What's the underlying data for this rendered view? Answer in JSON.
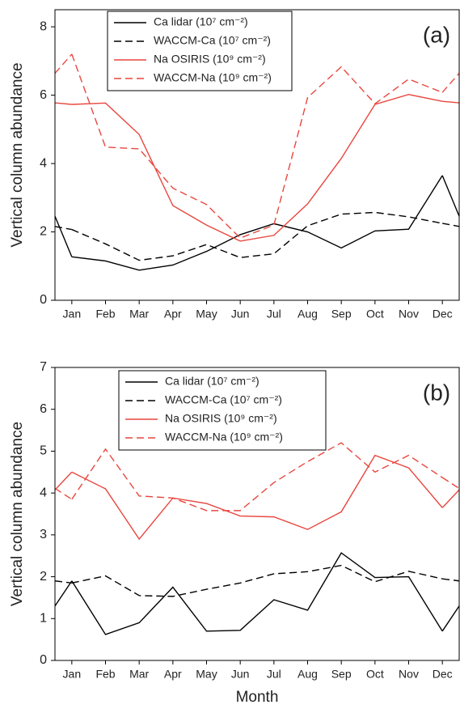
{
  "chart_data": [
    {
      "type": "line",
      "annotation": "(a)",
      "ylabel": "Vertical column abundance",
      "categories": [
        "Jan",
        "Feb",
        "Mar",
        "Apr",
        "May",
        "Jun",
        "Jul",
        "Aug",
        "Sep",
        "Oct",
        "Nov",
        "Dec"
      ],
      "ylim": [
        0,
        8.5
      ],
      "yticks": [
        0,
        2,
        4,
        6,
        8
      ],
      "series": [
        {
          "name": "Ca lidar (10⁷ cm⁻²)",
          "color": "#000000",
          "dash": false,
          "values": [
            1.27,
            1.15,
            0.88,
            1.03,
            1.43,
            1.92,
            2.24,
            2.0,
            1.53,
            2.03,
            2.08,
            3.65
          ]
        },
        {
          "name": "WACCM-Ca (10⁷ cm⁻²)",
          "color": "#000000",
          "dash": true,
          "values": [
            2.07,
            1.65,
            1.17,
            1.3,
            1.63,
            1.25,
            1.36,
            2.18,
            2.52,
            2.57,
            2.44,
            2.25
          ]
        },
        {
          "name": "Na OSIRIS (10⁹ cm⁻²)",
          "color": "#e8473f",
          "dash": false,
          "values": [
            5.73,
            5.77,
            4.85,
            2.77,
            2.2,
            1.73,
            1.9,
            2.82,
            4.15,
            5.73,
            6.02,
            5.82
          ]
        },
        {
          "name": "WACCM-Na (10⁹ cm⁻²)",
          "color": "#e8473f",
          "dash": true,
          "values": [
            7.2,
            4.48,
            4.43,
            3.28,
            2.8,
            1.82,
            2.2,
            5.93,
            6.83,
            5.75,
            6.47,
            6.08
          ]
        }
      ]
    },
    {
      "type": "line",
      "annotation": "(b)",
      "ylabel": "Vertical column abundance",
      "xlabel": "Month",
      "categories": [
        "Jan",
        "Feb",
        "Mar",
        "Apr",
        "May",
        "Jun",
        "Jul",
        "Aug",
        "Sep",
        "Oct",
        "Nov",
        "Dec"
      ],
      "ylim": [
        0,
        7
      ],
      "yticks": [
        0,
        1,
        2,
        3,
        4,
        5,
        6,
        7
      ],
      "series": [
        {
          "name": "Ca lidar (10⁷ cm⁻²)",
          "color": "#000000",
          "dash": false,
          "values": [
            1.9,
            0.62,
            0.9,
            1.75,
            0.7,
            0.72,
            1.45,
            1.2,
            2.57,
            1.98,
            2.0,
            0.7
          ]
        },
        {
          "name": "WACCM-Ca (10⁷ cm⁻²)",
          "color": "#000000",
          "dash": true,
          "values": [
            1.85,
            2.02,
            1.55,
            1.53,
            1.7,
            1.85,
            2.07,
            2.12,
            2.27,
            1.88,
            2.13,
            1.95
          ]
        },
        {
          "name": "Na OSIRIS (10⁹ cm⁻²)",
          "color": "#e8473f",
          "dash": false,
          "values": [
            4.5,
            4.1,
            2.9,
            3.88,
            3.75,
            3.45,
            3.43,
            3.13,
            3.55,
            4.9,
            4.6,
            3.65
          ]
        },
        {
          "name": "WACCM-Na (10⁹ cm⁻²)",
          "color": "#e8473f",
          "dash": true,
          "values": [
            3.85,
            5.05,
            3.93,
            3.88,
            3.58,
            3.58,
            4.25,
            4.75,
            5.2,
            4.5,
            4.9,
            4.37
          ]
        }
      ]
    }
  ]
}
